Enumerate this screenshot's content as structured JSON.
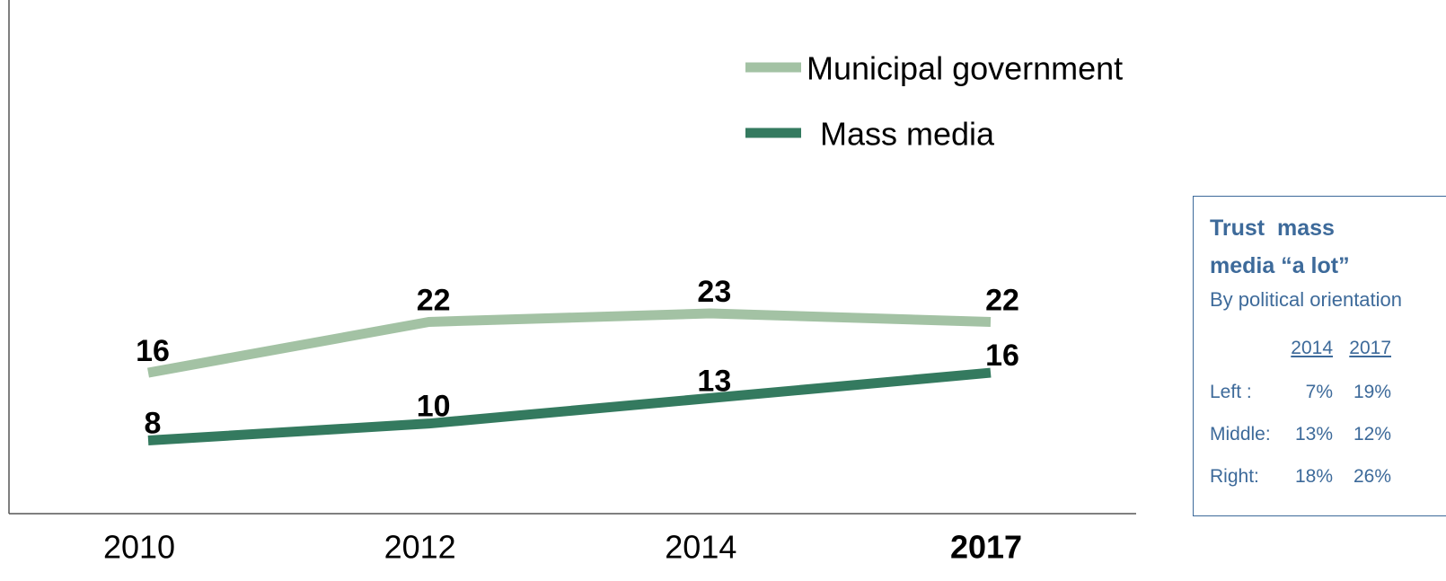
{
  "chart_data": {
    "type": "line",
    "categories": [
      "2010",
      "2012",
      "2014",
      "2017"
    ],
    "series": [
      {
        "name": "Municipal government",
        "color": "#a3c2a4",
        "values": [
          16,
          22,
          23,
          22
        ]
      },
      {
        "name": "Mass media",
        "color": "#347a5f",
        "values": [
          8,
          10,
          13,
          16
        ]
      }
    ],
    "ylim": [
      0,
      60
    ]
  },
  "side_table": {
    "title": "Trust  mass media “a lot”",
    "subtitle": "By political orientation",
    "columns": [
      "2014",
      "2017"
    ],
    "rows": [
      {
        "label": "Left :",
        "values": [
          "7%",
          "19%"
        ]
      },
      {
        "label": "Middle:",
        "values": [
          "13%",
          "12%"
        ]
      },
      {
        "label": "Right:",
        "values": [
          "18%",
          "26%"
        ]
      }
    ]
  }
}
